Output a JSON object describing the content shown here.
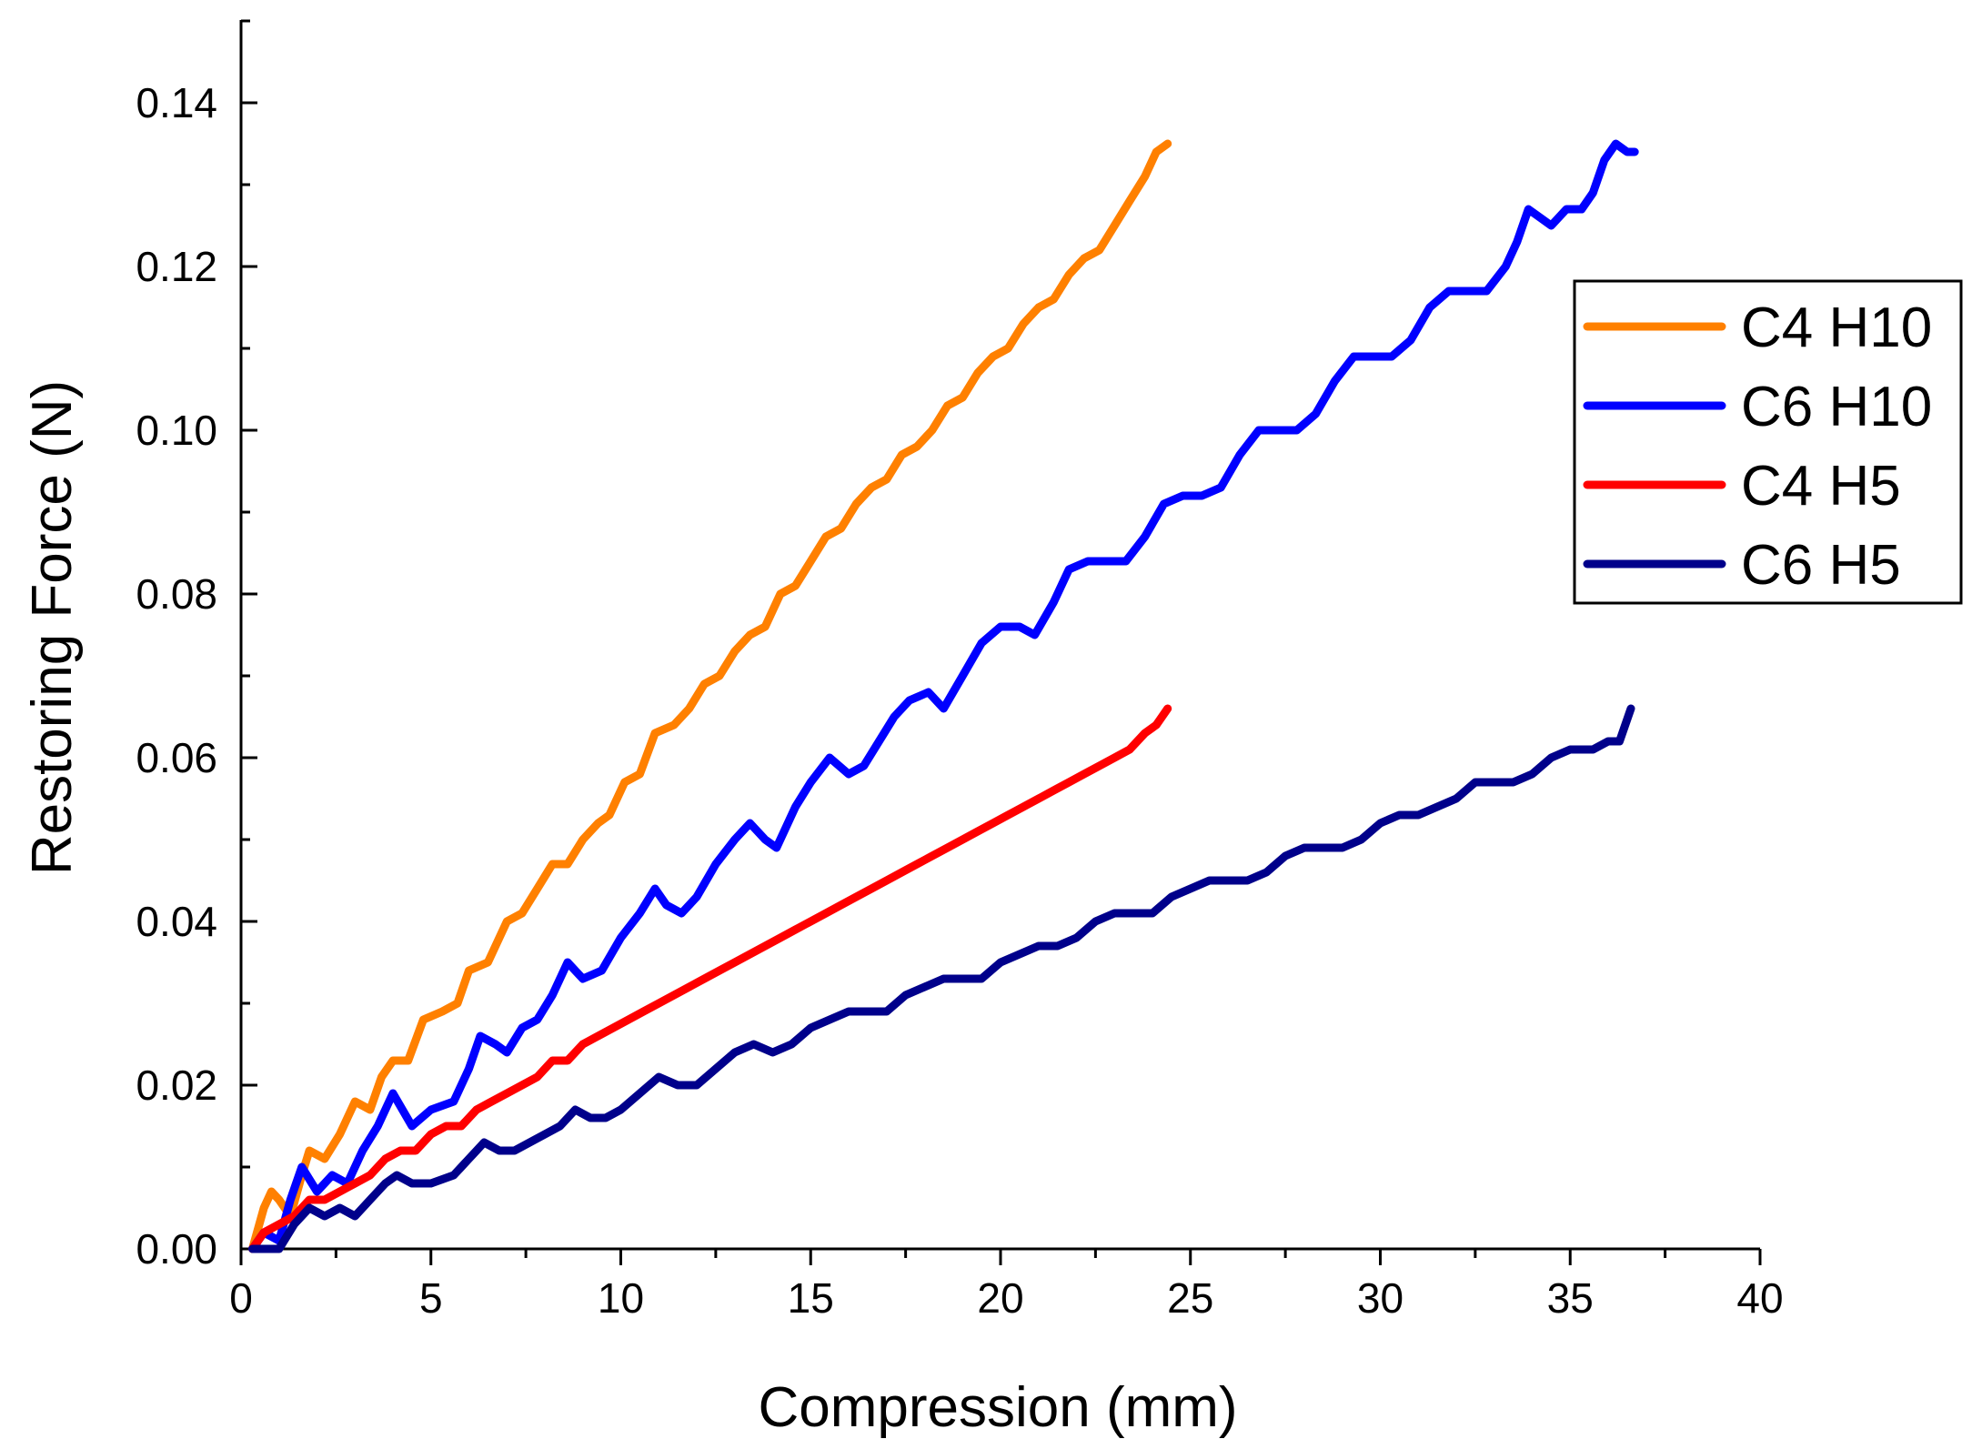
{
  "chart_data": {
    "type": "line",
    "title": "",
    "xlabel": "Compression (mm)",
    "ylabel": "Restoring Force (N)",
    "xlim": [
      0,
      40
    ],
    "ylim": [
      0,
      0.15
    ],
    "xticks": [
      "0",
      "5",
      "10",
      "15",
      "20",
      "25",
      "30",
      "35",
      "40"
    ],
    "yticks": [
      "0.00",
      "0.02",
      "0.04",
      "0.06",
      "0.08",
      "0.10",
      "0.12",
      "0.14"
    ],
    "grid": false,
    "legend_position": "top-right",
    "series": [
      {
        "name": "C4 H10",
        "color": "#FF8000",
        "points": [
          [
            0.3,
            0.0
          ],
          [
            0.6,
            0.005
          ],
          [
            0.8,
            0.007
          ],
          [
            1.0,
            0.006
          ],
          [
            1.3,
            0.004
          ],
          [
            1.6,
            0.009
          ],
          [
            1.8,
            0.012
          ],
          [
            2.2,
            0.011
          ],
          [
            2.6,
            0.014
          ],
          [
            3.0,
            0.018
          ],
          [
            3.4,
            0.017
          ],
          [
            3.7,
            0.021
          ],
          [
            4.0,
            0.023
          ],
          [
            4.4,
            0.023
          ],
          [
            4.8,
            0.028
          ],
          [
            5.3,
            0.029
          ],
          [
            5.7,
            0.03
          ],
          [
            6.0,
            0.034
          ],
          [
            6.5,
            0.035
          ],
          [
            7.0,
            0.04
          ],
          [
            7.4,
            0.041
          ],
          [
            7.8,
            0.044
          ],
          [
            8.2,
            0.047
          ],
          [
            8.6,
            0.047
          ],
          [
            9.0,
            0.05
          ],
          [
            9.4,
            0.052
          ],
          [
            9.7,
            0.053
          ],
          [
            10.1,
            0.057
          ],
          [
            10.5,
            0.058
          ],
          [
            10.9,
            0.063
          ],
          [
            11.4,
            0.064
          ],
          [
            11.8,
            0.066
          ],
          [
            12.2,
            0.069
          ],
          [
            12.6,
            0.07
          ],
          [
            13.0,
            0.073
          ],
          [
            13.4,
            0.075
          ],
          [
            13.8,
            0.076
          ],
          [
            14.2,
            0.08
          ],
          [
            14.6,
            0.081
          ],
          [
            15.0,
            0.084
          ],
          [
            15.4,
            0.087
          ],
          [
            15.8,
            0.088
          ],
          [
            16.2,
            0.091
          ],
          [
            16.6,
            0.093
          ],
          [
            17.0,
            0.094
          ],
          [
            17.4,
            0.097
          ],
          [
            17.8,
            0.098
          ],
          [
            18.2,
            0.1
          ],
          [
            18.6,
            0.103
          ],
          [
            19.0,
            0.104
          ],
          [
            19.4,
            0.107
          ],
          [
            19.8,
            0.109
          ],
          [
            20.2,
            0.11
          ],
          [
            20.6,
            0.113
          ],
          [
            21.0,
            0.115
          ],
          [
            21.4,
            0.116
          ],
          [
            21.8,
            0.119
          ],
          [
            22.2,
            0.121
          ],
          [
            22.6,
            0.122
          ],
          [
            23.0,
            0.125
          ],
          [
            23.4,
            0.128
          ],
          [
            23.8,
            0.131
          ],
          [
            24.1,
            0.134
          ],
          [
            24.4,
            0.135
          ]
        ]
      },
      {
        "name": "C6 H10",
        "color": "#0000FF",
        "points": [
          [
            0.3,
            0.0
          ],
          [
            0.6,
            0.002
          ],
          [
            1.0,
            0.001
          ],
          [
            1.3,
            0.006
          ],
          [
            1.6,
            0.01
          ],
          [
            2.0,
            0.007
          ],
          [
            2.4,
            0.009
          ],
          [
            2.8,
            0.008
          ],
          [
            3.2,
            0.012
          ],
          [
            3.6,
            0.015
          ],
          [
            4.0,
            0.019
          ],
          [
            4.5,
            0.015
          ],
          [
            5.0,
            0.017
          ],
          [
            5.6,
            0.018
          ],
          [
            6.0,
            0.022
          ],
          [
            6.3,
            0.026
          ],
          [
            6.7,
            0.025
          ],
          [
            7.0,
            0.024
          ],
          [
            7.4,
            0.027
          ],
          [
            7.8,
            0.028
          ],
          [
            8.2,
            0.031
          ],
          [
            8.6,
            0.035
          ],
          [
            9.0,
            0.033
          ],
          [
            9.5,
            0.034
          ],
          [
            10.0,
            0.038
          ],
          [
            10.5,
            0.041
          ],
          [
            10.9,
            0.044
          ],
          [
            11.2,
            0.042
          ],
          [
            11.6,
            0.041
          ],
          [
            12.0,
            0.043
          ],
          [
            12.5,
            0.047
          ],
          [
            13.0,
            0.05
          ],
          [
            13.4,
            0.052
          ],
          [
            13.8,
            0.05
          ],
          [
            14.1,
            0.049
          ],
          [
            14.6,
            0.054
          ],
          [
            15.0,
            0.057
          ],
          [
            15.5,
            0.06
          ],
          [
            16.0,
            0.058
          ],
          [
            16.4,
            0.059
          ],
          [
            16.8,
            0.062
          ],
          [
            17.2,
            0.065
          ],
          [
            17.6,
            0.067
          ],
          [
            18.1,
            0.068
          ],
          [
            18.5,
            0.066
          ],
          [
            19.0,
            0.07
          ],
          [
            19.5,
            0.074
          ],
          [
            20.0,
            0.076
          ],
          [
            20.5,
            0.076
          ],
          [
            20.9,
            0.075
          ],
          [
            21.4,
            0.079
          ],
          [
            21.8,
            0.083
          ],
          [
            22.3,
            0.084
          ],
          [
            22.8,
            0.084
          ],
          [
            23.3,
            0.084
          ],
          [
            23.8,
            0.087
          ],
          [
            24.3,
            0.091
          ],
          [
            24.8,
            0.092
          ],
          [
            25.3,
            0.092
          ],
          [
            25.8,
            0.093
          ],
          [
            26.3,
            0.097
          ],
          [
            26.8,
            0.1
          ],
          [
            27.3,
            0.1
          ],
          [
            27.8,
            0.1
          ],
          [
            28.3,
            0.102
          ],
          [
            28.8,
            0.106
          ],
          [
            29.3,
            0.109
          ],
          [
            29.8,
            0.109
          ],
          [
            30.3,
            0.109
          ],
          [
            30.8,
            0.111
          ],
          [
            31.3,
            0.115
          ],
          [
            31.8,
            0.117
          ],
          [
            32.3,
            0.117
          ],
          [
            32.8,
            0.117
          ],
          [
            33.3,
            0.12
          ],
          [
            33.6,
            0.123
          ],
          [
            33.9,
            0.127
          ],
          [
            34.2,
            0.126
          ],
          [
            34.5,
            0.125
          ],
          [
            34.9,
            0.127
          ],
          [
            35.3,
            0.127
          ],
          [
            35.6,
            0.129
          ],
          [
            35.9,
            0.133
          ],
          [
            36.2,
            0.135
          ],
          [
            36.5,
            0.134
          ],
          [
            36.7,
            0.134
          ]
        ]
      },
      {
        "name": "C4 H5",
        "color": "#FF0000",
        "points": [
          [
            0.3,
            0.0
          ],
          [
            0.6,
            0.002
          ],
          [
            1.0,
            0.003
          ],
          [
            1.4,
            0.004
          ],
          [
            1.8,
            0.006
          ],
          [
            2.2,
            0.006
          ],
          [
            2.6,
            0.007
          ],
          [
            3.0,
            0.008
          ],
          [
            3.4,
            0.009
          ],
          [
            3.8,
            0.011
          ],
          [
            4.2,
            0.012
          ],
          [
            4.6,
            0.012
          ],
          [
            5.0,
            0.014
          ],
          [
            5.4,
            0.015
          ],
          [
            5.8,
            0.015
          ],
          [
            6.2,
            0.017
          ],
          [
            6.6,
            0.018
          ],
          [
            7.0,
            0.019
          ],
          [
            7.4,
            0.02
          ],
          [
            7.8,
            0.021
          ],
          [
            8.2,
            0.023
          ],
          [
            8.6,
            0.023
          ],
          [
            9.0,
            0.025
          ],
          [
            9.4,
            0.026
          ],
          [
            9.8,
            0.027
          ],
          [
            10.2,
            0.028
          ],
          [
            10.6,
            0.029
          ],
          [
            11.0,
            0.03
          ],
          [
            11.4,
            0.031
          ],
          [
            11.8,
            0.032
          ],
          [
            12.2,
            0.033
          ],
          [
            12.6,
            0.034
          ],
          [
            13.0,
            0.035
          ],
          [
            13.4,
            0.036
          ],
          [
            13.8,
            0.037
          ],
          [
            14.2,
            0.038
          ],
          [
            14.6,
            0.039
          ],
          [
            15.0,
            0.04
          ],
          [
            15.4,
            0.041
          ],
          [
            15.8,
            0.042
          ],
          [
            16.2,
            0.043
          ],
          [
            16.6,
            0.044
          ],
          [
            17.0,
            0.045
          ],
          [
            17.4,
            0.046
          ],
          [
            17.8,
            0.047
          ],
          [
            18.2,
            0.048
          ],
          [
            18.6,
            0.049
          ],
          [
            19.0,
            0.05
          ],
          [
            19.4,
            0.051
          ],
          [
            19.8,
            0.052
          ],
          [
            20.2,
            0.053
          ],
          [
            20.6,
            0.054
          ],
          [
            21.0,
            0.055
          ],
          [
            21.4,
            0.056
          ],
          [
            21.8,
            0.057
          ],
          [
            22.2,
            0.058
          ],
          [
            22.6,
            0.059
          ],
          [
            23.0,
            0.06
          ],
          [
            23.4,
            0.061
          ],
          [
            23.8,
            0.063
          ],
          [
            24.1,
            0.064
          ],
          [
            24.4,
            0.066
          ]
        ]
      },
      {
        "name": "C6 H5",
        "color": "#00008B",
        "points": [
          [
            0.3,
            0.0
          ],
          [
            0.7,
            0.0
          ],
          [
            1.0,
            0.0
          ],
          [
            1.4,
            0.003
          ],
          [
            1.8,
            0.005
          ],
          [
            2.2,
            0.004
          ],
          [
            2.6,
            0.005
          ],
          [
            3.0,
            0.004
          ],
          [
            3.4,
            0.006
          ],
          [
            3.8,
            0.008
          ],
          [
            4.1,
            0.009
          ],
          [
            4.5,
            0.008
          ],
          [
            5.0,
            0.008
          ],
          [
            5.6,
            0.009
          ],
          [
            6.0,
            0.011
          ],
          [
            6.4,
            0.013
          ],
          [
            6.8,
            0.012
          ],
          [
            7.2,
            0.012
          ],
          [
            7.6,
            0.013
          ],
          [
            8.0,
            0.014
          ],
          [
            8.4,
            0.015
          ],
          [
            8.8,
            0.017
          ],
          [
            9.2,
            0.016
          ],
          [
            9.6,
            0.016
          ],
          [
            10.0,
            0.017
          ],
          [
            10.5,
            0.019
          ],
          [
            11.0,
            0.021
          ],
          [
            11.5,
            0.02
          ],
          [
            12.0,
            0.02
          ],
          [
            12.5,
            0.022
          ],
          [
            13.0,
            0.024
          ],
          [
            13.5,
            0.025
          ],
          [
            14.0,
            0.024
          ],
          [
            14.5,
            0.025
          ],
          [
            15.0,
            0.027
          ],
          [
            15.5,
            0.028
          ],
          [
            16.0,
            0.029
          ],
          [
            16.5,
            0.029
          ],
          [
            17.0,
            0.029
          ],
          [
            17.5,
            0.031
          ],
          [
            18.0,
            0.032
          ],
          [
            18.5,
            0.033
          ],
          [
            19.0,
            0.033
          ],
          [
            19.5,
            0.033
          ],
          [
            20.0,
            0.035
          ],
          [
            20.5,
            0.036
          ],
          [
            21.0,
            0.037
          ],
          [
            21.5,
            0.037
          ],
          [
            22.0,
            0.038
          ],
          [
            22.5,
            0.04
          ],
          [
            23.0,
            0.041
          ],
          [
            23.5,
            0.041
          ],
          [
            24.0,
            0.041
          ],
          [
            24.5,
            0.043
          ],
          [
            25.0,
            0.044
          ],
          [
            25.5,
            0.045
          ],
          [
            26.0,
            0.045
          ],
          [
            26.5,
            0.045
          ],
          [
            27.0,
            0.046
          ],
          [
            27.5,
            0.048
          ],
          [
            28.0,
            0.049
          ],
          [
            28.5,
            0.049
          ],
          [
            29.0,
            0.049
          ],
          [
            29.5,
            0.05
          ],
          [
            30.0,
            0.052
          ],
          [
            30.5,
            0.053
          ],
          [
            31.0,
            0.053
          ],
          [
            31.5,
            0.054
          ],
          [
            32.0,
            0.055
          ],
          [
            32.5,
            0.057
          ],
          [
            33.0,
            0.057
          ],
          [
            33.5,
            0.057
          ],
          [
            34.0,
            0.058
          ],
          [
            34.5,
            0.06
          ],
          [
            35.0,
            0.061
          ],
          [
            35.3,
            0.061
          ],
          [
            35.6,
            0.061
          ],
          [
            36.0,
            0.062
          ],
          [
            36.3,
            0.062
          ],
          [
            36.6,
            0.066
          ]
        ]
      }
    ]
  }
}
